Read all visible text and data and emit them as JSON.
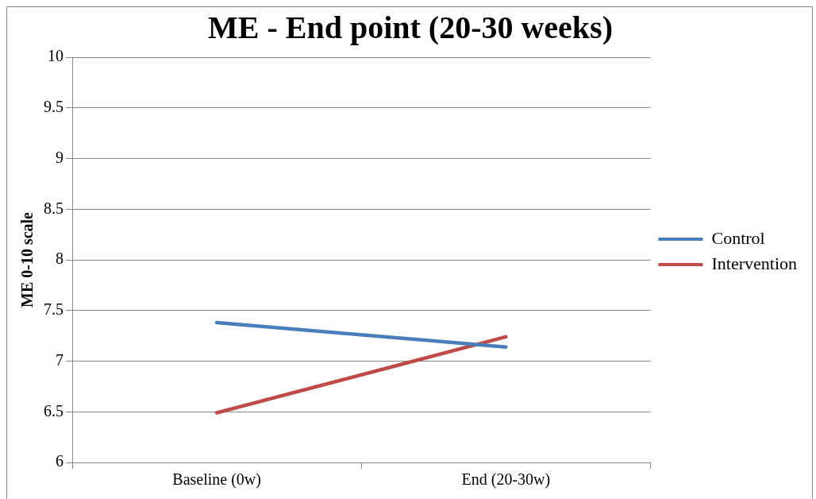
{
  "chart_data": {
    "type": "line",
    "title": "ME - End point (20-30 weeks)",
    "ylabel": "ME 0-10 scale",
    "categories": [
      "Baseline (0w)",
      "End (20-30w)"
    ],
    "series": [
      {
        "name": "Control",
        "color": "#4a7ebb",
        "values": [
          7.38,
          7.14
        ]
      },
      {
        "name": "Intervention",
        "color": "#be4b48",
        "values": [
          6.49,
          7.24
        ]
      }
    ],
    "ylim": [
      6,
      10
    ],
    "yticks": [
      6,
      6.5,
      7,
      7.5,
      8,
      8.5,
      9,
      9.5,
      10
    ],
    "grid": "y",
    "legend": "right",
    "marker": "none"
  }
}
